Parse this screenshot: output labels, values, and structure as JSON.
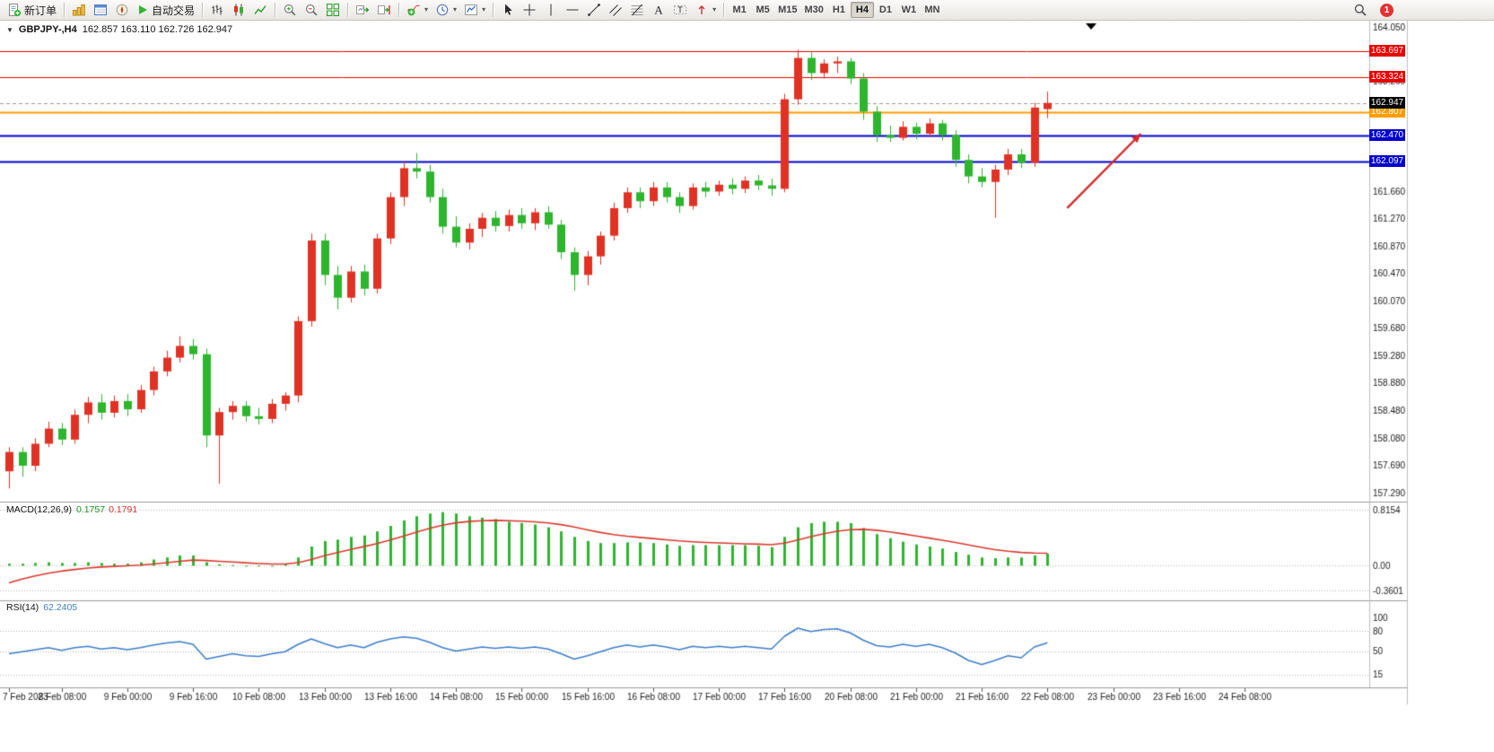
{
  "toolbar": {
    "new_order_label": "新订单",
    "auto_trading_label": "自动交易",
    "timeframes": [
      "M1",
      "M5",
      "M15",
      "M30",
      "H1",
      "H4",
      "D1",
      "W1",
      "MN"
    ],
    "active_timeframe": "H4",
    "notification_count": "1"
  },
  "chart_header": {
    "symbol_period": "GBPJPY-,H4",
    "ohlc_text": "162.857 163.110 162.726 162.947"
  },
  "macd_header": {
    "name": "MACD(12,26,9)",
    "main_value": "0.1757",
    "signal_value": "0.1791"
  },
  "rsi_header": {
    "name": "RSI(14)",
    "value": "62.2405"
  },
  "chart_data": {
    "type": "candlestick",
    "symbol": "GBPJPY-",
    "timeframe": "H4",
    "current_ohlc": {
      "open": 162.857,
      "high": 163.11,
      "low": 162.726,
      "close": 162.947
    },
    "price_axis": {
      "max": 164.05,
      "min": 157.29,
      "ticks": [
        "164.050",
        "163.660",
        "163.260",
        "162.860",
        "161.660",
        "161.270",
        "160.870",
        "160.470",
        "160.070",
        "159.680",
        "159.280",
        "158.880",
        "158.480",
        "158.080",
        "157.690",
        "157.290"
      ]
    },
    "colors": {
      "up": "#e03224",
      "down": "#2eb52e"
    },
    "candles": [
      [
        157.6,
        157.95,
        157.35,
        157.88
      ],
      [
        157.88,
        157.95,
        157.52,
        157.68
      ],
      [
        157.68,
        158.08,
        157.6,
        158.0
      ],
      [
        158.0,
        158.32,
        157.95,
        158.22
      ],
      [
        158.22,
        158.3,
        157.98,
        158.06
      ],
      [
        158.06,
        158.5,
        158.0,
        158.42
      ],
      [
        158.42,
        158.68,
        158.3,
        158.6
      ],
      [
        158.6,
        158.72,
        158.35,
        158.45
      ],
      [
        158.45,
        158.7,
        158.38,
        158.62
      ],
      [
        158.62,
        158.72,
        158.4,
        158.5
      ],
      [
        158.5,
        158.85,
        158.45,
        158.78
      ],
      [
        158.78,
        159.12,
        158.7,
        159.05
      ],
      [
        159.05,
        159.35,
        158.98,
        159.25
      ],
      [
        159.25,
        159.56,
        159.18,
        159.42
      ],
      [
        159.42,
        159.52,
        159.22,
        159.3
      ],
      [
        159.3,
        159.38,
        157.95,
        158.12
      ],
      [
        158.12,
        158.52,
        157.42,
        158.46
      ],
      [
        158.46,
        158.62,
        158.35,
        158.55
      ],
      [
        158.55,
        158.62,
        158.32,
        158.4
      ],
      [
        158.4,
        158.52,
        158.28,
        158.36
      ],
      [
        158.36,
        158.65,
        158.3,
        158.58
      ],
      [
        158.58,
        158.75,
        158.48,
        158.7
      ],
      [
        158.7,
        159.85,
        158.6,
        159.78
      ],
      [
        159.78,
        161.05,
        159.7,
        160.95
      ],
      [
        160.95,
        161.05,
        160.3,
        160.45
      ],
      [
        160.45,
        160.58,
        159.95,
        160.12
      ],
      [
        160.12,
        160.58,
        160.05,
        160.5
      ],
      [
        160.5,
        160.6,
        160.15,
        160.25
      ],
      [
        160.25,
        161.05,
        160.18,
        160.98
      ],
      [
        160.98,
        161.65,
        160.9,
        161.58
      ],
      [
        161.58,
        162.1,
        161.45,
        162.0
      ],
      [
        162.0,
        162.22,
        161.85,
        161.95
      ],
      [
        161.95,
        162.05,
        161.5,
        161.58
      ],
      [
        161.58,
        161.7,
        161.05,
        161.15
      ],
      [
        161.15,
        161.3,
        160.85,
        160.92
      ],
      [
        160.92,
        161.2,
        160.82,
        161.12
      ],
      [
        161.12,
        161.35,
        161.0,
        161.28
      ],
      [
        161.28,
        161.38,
        161.08,
        161.16
      ],
      [
        161.16,
        161.4,
        161.08,
        161.32
      ],
      [
        161.32,
        161.42,
        161.12,
        161.2
      ],
      [
        161.2,
        161.42,
        161.1,
        161.36
      ],
      [
        161.36,
        161.45,
        161.12,
        161.18
      ],
      [
        161.18,
        161.25,
        160.68,
        160.78
      ],
      [
        160.78,
        160.85,
        160.22,
        160.45
      ],
      [
        160.45,
        160.8,
        160.3,
        160.72
      ],
      [
        160.72,
        161.08,
        160.6,
        161.02
      ],
      [
        161.02,
        161.5,
        160.95,
        161.42
      ],
      [
        161.42,
        161.72,
        161.35,
        161.65
      ],
      [
        161.65,
        161.72,
        161.42,
        161.52
      ],
      [
        161.52,
        161.8,
        161.45,
        161.72
      ],
      [
        161.72,
        161.8,
        161.5,
        161.58
      ],
      [
        161.58,
        161.65,
        161.35,
        161.45
      ],
      [
        161.45,
        161.78,
        161.4,
        161.72
      ],
      [
        161.72,
        161.8,
        161.58,
        161.66
      ],
      [
        161.66,
        161.82,
        161.6,
        161.76
      ],
      [
        161.76,
        161.85,
        161.62,
        161.7
      ],
      [
        161.7,
        161.88,
        161.64,
        161.82
      ],
      [
        161.82,
        161.9,
        161.68,
        161.75
      ],
      [
        161.75,
        161.85,
        161.6,
        161.7
      ],
      [
        161.7,
        163.08,
        161.65,
        163.0
      ],
      [
        163.0,
        163.72,
        162.92,
        163.6
      ],
      [
        163.6,
        163.68,
        163.28,
        163.38
      ],
      [
        163.38,
        163.58,
        163.3,
        163.52
      ],
      [
        163.52,
        163.62,
        163.38,
        163.55
      ],
      [
        163.55,
        163.6,
        163.22,
        163.3
      ],
      [
        163.3,
        163.38,
        162.7,
        162.82
      ],
      [
        162.82,
        162.9,
        162.38,
        162.48
      ],
      [
        162.48,
        162.62,
        162.38,
        162.44
      ],
      [
        162.44,
        162.68,
        162.4,
        162.6
      ],
      [
        162.6,
        162.66,
        162.42,
        162.5
      ],
      [
        162.5,
        162.72,
        162.45,
        162.65
      ],
      [
        162.65,
        162.7,
        162.4,
        162.48
      ],
      [
        162.48,
        162.55,
        162.02,
        162.12
      ],
      [
        162.12,
        162.2,
        161.78,
        161.88
      ],
      [
        161.88,
        162.0,
        161.72,
        161.8
      ],
      [
        161.8,
        162.05,
        161.28,
        161.98
      ],
      [
        161.98,
        162.28,
        161.9,
        162.2
      ],
      [
        162.2,
        162.28,
        162.0,
        162.08
      ],
      [
        162.08,
        162.95,
        162.02,
        162.88
      ],
      [
        162.857,
        163.11,
        162.726,
        162.947
      ]
    ],
    "levels": [
      {
        "label": "163.697",
        "value": 163.697,
        "color": "#e60000",
        "width": 1
      },
      {
        "label": "163.324",
        "value": 163.324,
        "color": "#e60000",
        "width": 1
      },
      {
        "label": "162.807",
        "value": 162.807,
        "color": "#ff9c00",
        "width": 2
      },
      {
        "label": "162.470",
        "value": 162.47,
        "color": "#0202cc",
        "width": 2
      },
      {
        "label": "162.097",
        "value": 162.097,
        "color": "#0202cc",
        "width": 2
      }
    ],
    "current_price": {
      "label": "162.947",
      "value": 162.947,
      "color": "#000000"
    },
    "annotation_arrow": {
      "from_index": 80.5,
      "from_price": 161.42,
      "to_index": 86.1,
      "to_price": 162.5,
      "color": "#d42a2a"
    },
    "macd": {
      "params": "12,26,9",
      "label_ticks": [
        "0.8154",
        "0.00",
        "-0.3601"
      ],
      "max": 0.8154,
      "min": -0.3601,
      "hist_color": "#2eb52e",
      "signal_color": "#d83a2e",
      "signal_seed": -0.32,
      "values": [
        0.03,
        0.03,
        0.04,
        0.05,
        0.04,
        0.04,
        0.05,
        0.04,
        0.03,
        0.03,
        0.05,
        0.09,
        0.12,
        0.15,
        0.15,
        0.05,
        0.02,
        0.01,
        0.0,
        -0.01,
        0.0,
        0.02,
        0.12,
        0.28,
        0.36,
        0.38,
        0.42,
        0.44,
        0.5,
        0.58,
        0.66,
        0.72,
        0.76,
        0.78,
        0.76,
        0.72,
        0.7,
        0.68,
        0.64,
        0.62,
        0.6,
        0.56,
        0.5,
        0.42,
        0.36,
        0.33,
        0.33,
        0.34,
        0.34,
        0.33,
        0.31,
        0.29,
        0.3,
        0.3,
        0.3,
        0.3,
        0.3,
        0.29,
        0.27,
        0.42,
        0.56,
        0.62,
        0.64,
        0.64,
        0.62,
        0.55,
        0.46,
        0.4,
        0.35,
        0.31,
        0.28,
        0.25,
        0.2,
        0.16,
        0.12,
        0.11,
        0.12,
        0.12,
        0.15,
        0.1757
      ]
    },
    "rsi": {
      "period": 14,
      "label_ticks": [
        "100",
        "80",
        "50",
        "15"
      ],
      "max": 100,
      "min": 0,
      "levels": [
        80,
        50,
        15
      ],
      "color": "#3c7ec8",
      "values": [
        46,
        49,
        52,
        55,
        51,
        55,
        57,
        53,
        55,
        52,
        55,
        59,
        62,
        64,
        60,
        38,
        42,
        46,
        43,
        42,
        46,
        49,
        60,
        68,
        61,
        55,
        59,
        55,
        63,
        68,
        71,
        69,
        63,
        55,
        50,
        53,
        56,
        54,
        56,
        54,
        56,
        53,
        46,
        38,
        43,
        49,
        55,
        59,
        56,
        59,
        56,
        52,
        57,
        55,
        57,
        55,
        57,
        55,
        53,
        72,
        84,
        79,
        82,
        83,
        77,
        66,
        58,
        56,
        60,
        57,
        60,
        55,
        47,
        36,
        30,
        36,
        43,
        40,
        56,
        62.24
      ]
    },
    "time_axis": {
      "slots": [
        0,
        4,
        9,
        14,
        19,
        24,
        29,
        34,
        39,
        44,
        49,
        54,
        59,
        64,
        69,
        74,
        79,
        84,
        89,
        94
      ],
      "labels": [
        "7 Feb 2023",
        "8 Feb 08:00",
        "9 Feb 00:00",
        "9 Feb 16:00",
        "10 Feb 08:00",
        "13 Feb 00:00",
        "13 Feb 16:00",
        "14 Feb 08:00",
        "15 Feb 00:00",
        "15 Feb 16:00",
        "16 Feb 08:00",
        "17 Feb 00:00",
        "17 Feb 16:00",
        "20 Feb 08:00",
        "21 Feb 00:00",
        "21 Feb 16:00",
        "22 Feb 08:00",
        "23 Feb 00:00",
        "23 Feb 16:00",
        "24 Feb 08:00"
      ]
    }
  }
}
